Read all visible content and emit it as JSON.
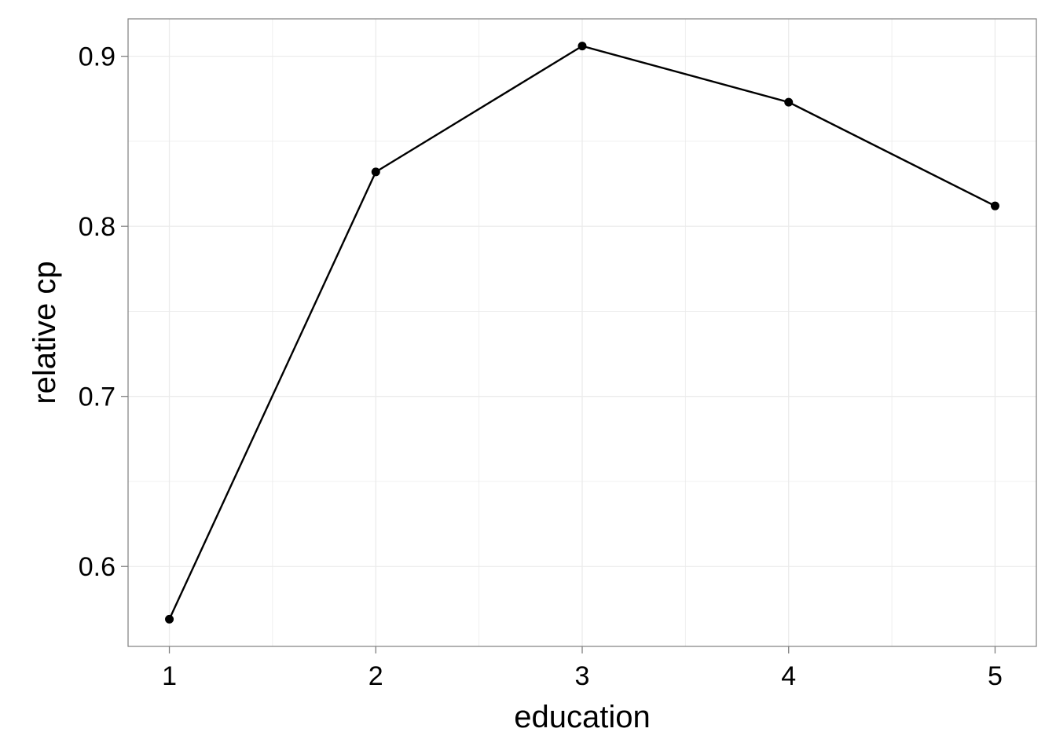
{
  "chart_data": {
    "type": "line",
    "xlabel": "education",
    "ylabel": "relative cp",
    "x": [
      1,
      2,
      3,
      4,
      5
    ],
    "series": [
      {
        "values": [
          0.569,
          0.832,
          0.906,
          0.873,
          0.812
        ]
      }
    ],
    "xticks": [
      "1",
      "2",
      "3",
      "4",
      "5"
    ],
    "yticks": [
      "0.6",
      "0.7",
      "0.8",
      "0.9"
    ],
    "xlim": [
      0.8,
      5.2
    ],
    "ylim": [
      0.553,
      0.922
    ],
    "grid": true,
    "colors": {
      "line": "#000000",
      "point": "#000000",
      "grid": "#ebebeb",
      "panel_border": "#7f7f7f",
      "background": "#ffffff"
    }
  }
}
